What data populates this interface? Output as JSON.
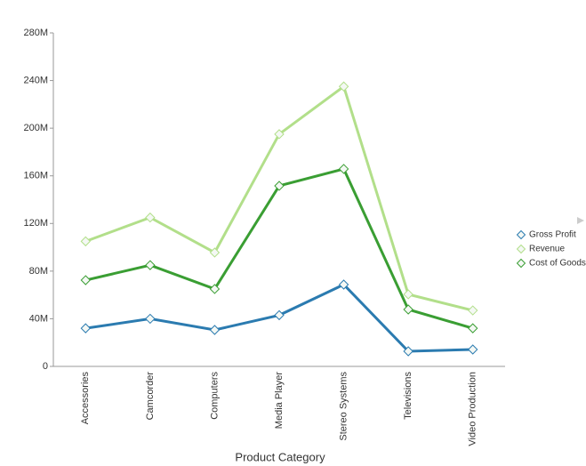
{
  "chart_data": {
    "type": "line",
    "x_label": "Product Category",
    "categories": [
      "Accessories",
      "Camcorder",
      "Computers",
      "Media Player",
      "Stereo Systems",
      "Televisions",
      "Video Production"
    ],
    "series": [
      {
        "name": "Gross Profit",
        "color": "#2b7bb0",
        "values": [
          32000000,
          40000000,
          30600000,
          43000000,
          68700000,
          12700000,
          14200000
        ]
      },
      {
        "name": "Revenue",
        "color": "#b2df8a",
        "values": [
          105000000,
          125000000,
          95600000,
          195000000,
          235000000,
          60500000,
          47000000
        ]
      },
      {
        "name": "Cost of Goods",
        "color": "#3a9e33",
        "values": [
          72400000,
          85000000,
          65000000,
          151600000,
          165800000,
          47800000,
          32000000
        ]
      }
    ],
    "ylim": [
      0,
      280000000
    ],
    "yticks": [
      0,
      {
        "value": 40000000,
        "label": "40M"
      },
      {
        "value": 80000000,
        "label": "80M"
      },
      {
        "value": 120000000,
        "label": "120M"
      },
      {
        "value": 160000000,
        "label": "160M"
      },
      {
        "value": 200000000,
        "label": "200M"
      },
      {
        "value": 240000000,
        "label": "240M"
      },
      {
        "value": 280000000,
        "label": "280M"
      }
    ],
    "legend": "right"
  }
}
